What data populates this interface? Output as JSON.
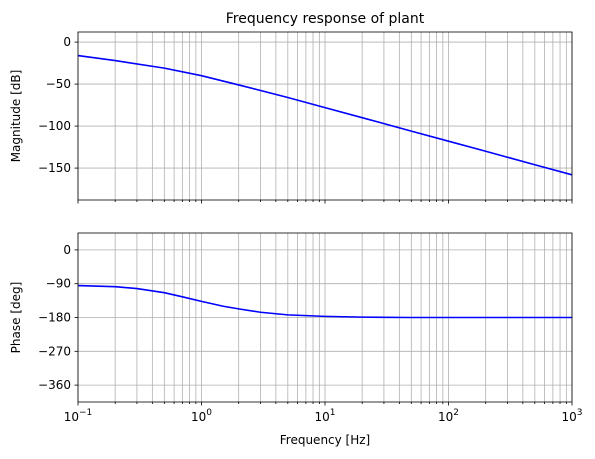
{
  "chart_data": [
    {
      "type": "line",
      "title": "Frequency response of plant",
      "xlabel": "",
      "ylabel": "Magnitude [dB]",
      "xscale": "log",
      "xlim": [
        0.1,
        1000
      ],
      "ylim": [
        -188,
        12
      ],
      "yticks": [
        0,
        -50,
        -100,
        -150
      ],
      "ytick_labels": [
        "0",
        "−50",
        "−100",
        "−150"
      ],
      "xtick_labels_shown": false,
      "grid": true,
      "color": "#0000ff",
      "series": [
        {
          "x": [
            0.1,
            0.2,
            0.5,
            1,
            2,
            5,
            10,
            20,
            50,
            100,
            200,
            500,
            1000
          ],
          "y": [
            -16,
            -22,
            -31,
            -40,
            -51,
            -66,
            -78,
            -90,
            -106,
            -118,
            -130,
            -146,
            -158
          ]
        }
      ]
    },
    {
      "type": "line",
      "title": "",
      "xlabel": "Frequency [Hz]",
      "ylabel": "Phase [deg]",
      "xscale": "log",
      "xlim": [
        0.1,
        1000
      ],
      "ylim": [
        -405,
        45
      ],
      "yticks": [
        0,
        -90,
        -180,
        -270,
        -360
      ],
      "ytick_labels": [
        "0",
        "−90",
        "−180",
        "−270",
        "−360"
      ],
      "xticks": [
        0.1,
        1,
        10,
        100,
        1000
      ],
      "xtick_labels": [
        [
          "10",
          "−1"
        ],
        [
          "10",
          "0"
        ],
        [
          "10",
          "1"
        ],
        [
          "10",
          "2"
        ],
        [
          "10",
          "3"
        ]
      ],
      "grid": true,
      "color": "#0000ff",
      "series": [
        {
          "x": [
            0.1,
            0.2,
            0.3,
            0.5,
            0.7,
            1,
            1.5,
            2,
            3,
            5,
            10,
            20,
            50,
            100,
            1000
          ],
          "y": [
            -95,
            -98,
            -103,
            -114,
            -125,
            -137,
            -150,
            -157,
            -166,
            -173,
            -177,
            -179,
            -180,
            -180,
            -180
          ]
        }
      ]
    }
  ]
}
